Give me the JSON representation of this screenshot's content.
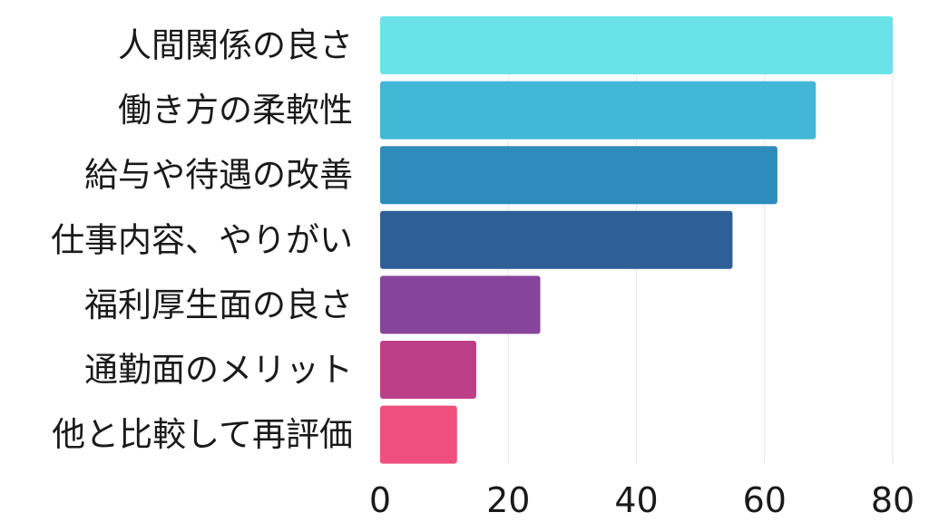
{
  "chart_data": {
    "type": "bar",
    "orientation": "horizontal",
    "categories": [
      "人間関係の良さ",
      "働き方の柔軟性",
      "給与や待遇の改善",
      "仕事内容、やりがい",
      "福利厚生面の良さ",
      "通勤面のメリット",
      "他と比較して再評価"
    ],
    "values": [
      80,
      68,
      62,
      55,
      25,
      15,
      12
    ],
    "colors": [
      "#6ae3e8",
      "#42b7d6",
      "#2d8cbb",
      "#2e5f97",
      "#87449b",
      "#bd3f87",
      "#ef4f7c"
    ],
    "xlim": [
      0,
      80
    ],
    "x_ticks": [
      0,
      20,
      40,
      60,
      80
    ],
    "x_tick_labels": [
      "0",
      "20",
      "40",
      "60",
      "80"
    ],
    "title": "",
    "xlabel": "",
    "ylabel": "",
    "grid": "vertical",
    "legend": "none"
  }
}
